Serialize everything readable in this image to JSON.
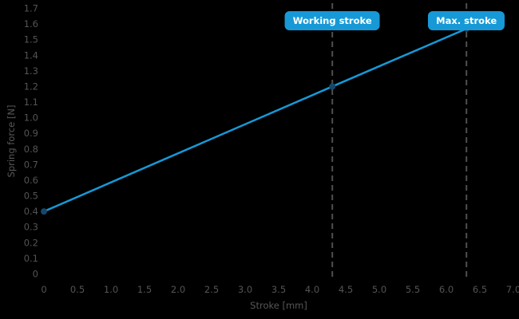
{
  "chart": {
    "background_color": "#000000",
    "tick_color": "#545454",
    "axis_title_color": "#575757"
  },
  "chart_data": {
    "type": "line",
    "xlabel": "Stroke [mm]",
    "ylabel": "Spring force [N]",
    "xlim": [
      0,
      7.0
    ],
    "ylim": [
      0,
      1.7
    ],
    "grid": false,
    "xticks": [
      "0",
      "0.5",
      "1.0",
      "1.5",
      "2.0",
      "2.5",
      "3.0",
      "3.5",
      "4.0",
      "4.5",
      "5.0",
      "5.5",
      "6.0",
      "6.5",
      "7.0"
    ],
    "yticks": [
      "0",
      "0.1",
      "0.2",
      "0.3",
      "0.4",
      "0.5",
      "0.6",
      "0.7",
      "0.8",
      "0.9",
      "1.0",
      "1.1",
      "1.2",
      "1.3",
      "1.4",
      "1.5",
      "1.6",
      "1.7"
    ],
    "series": [
      {
        "name": "Spring force",
        "x": [
          0,
          4.3,
          6.3
        ],
        "y": [
          0.4,
          1.2,
          1.57
        ],
        "line_color": "#1699d6",
        "marker_color": "#14486b"
      }
    ],
    "annotations": [
      {
        "x": 4.3,
        "label": "Working stroke",
        "line_color": "#4f4f4f",
        "line_style": "dashed",
        "box_color": "#1699d6",
        "text_color": "#ffffff"
      },
      {
        "x": 6.3,
        "label": "Max. stroke",
        "line_color": "#4f4f4f",
        "line_style": "dashed",
        "box_color": "#1699d6",
        "text_color": "#ffffff"
      }
    ]
  }
}
